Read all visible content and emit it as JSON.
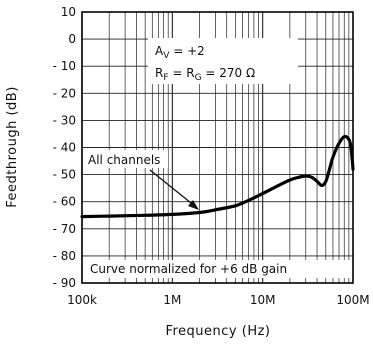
{
  "chart_data": {
    "type": "line",
    "xscale": "log",
    "xlabel": "Frequency (Hz)",
    "ylabel": "Feedthrough (dB)",
    "xlim": [
      100000,
      100000000
    ],
    "ylim": [
      -90,
      10
    ],
    "grid": true,
    "x_ticks": [
      {
        "value": 100000,
        "label": "100k"
      },
      {
        "value": 1000000,
        "label": "1M"
      },
      {
        "value": 10000000,
        "label": "10M"
      },
      {
        "value": 100000000,
        "label": "100M"
      }
    ],
    "y_ticks": [
      {
        "value": 10,
        "label": "10"
      },
      {
        "value": 0,
        "label": "0"
      },
      {
        "value": -10,
        "label": "- 10"
      },
      {
        "value": -20,
        "label": "- 20"
      },
      {
        "value": -30,
        "label": "- 30"
      },
      {
        "value": -40,
        "label": "- 40"
      },
      {
        "value": -50,
        "label": "- 50"
      },
      {
        "value": -60,
        "label": "- 60"
      },
      {
        "value": -70,
        "label": "- 70"
      },
      {
        "value": -80,
        "label": "- 80"
      },
      {
        "value": -90,
        "label": "- 90"
      }
    ],
    "annotations": {
      "gain": "A",
      "gain_sub": "V",
      "gain_val": " = +2",
      "rf": "R",
      "rf_sub": "F",
      "rg_eq": " = R",
      "rg_sub": "G",
      "rg_val": " = 270 Ω",
      "channels": "All channels",
      "normalized": "Curve normalized for +6 dB gain"
    },
    "series": [
      {
        "x": [
          100000,
          200000,
          500000,
          1000000,
          2000000,
          3000000,
          5000000,
          7000000,
          10000000,
          15000000,
          20000000,
          25000000,
          30000000,
          35000000,
          40000000,
          45000000,
          50000000,
          55000000,
          60000000,
          70000000,
          80000000,
          90000000,
          95000000,
          100000000
        ],
        "y": [
          -65.5,
          -65.3,
          -65,
          -64.7,
          -64,
          -63,
          -61.5,
          -59.5,
          -57,
          -54,
          -52,
          -51,
          -50.5,
          -51,
          -52.5,
          -54,
          -52.5,
          -48,
          -43.5,
          -38.5,
          -36,
          -37,
          -40,
          -48
        ]
      }
    ]
  }
}
